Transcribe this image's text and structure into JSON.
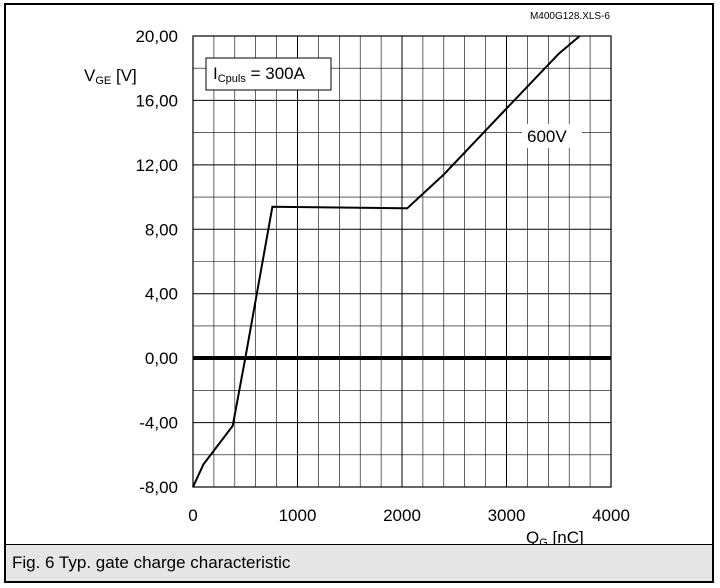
{
  "chart_data": {
    "type": "line",
    "title": "",
    "xlabel_main": "Q",
    "xlabel_sub": "G",
    "xlabel_unit": " [nC]",
    "ylabel_main": "V",
    "ylabel_sub": "GE",
    "ylabel_unit": " [V]",
    "xlim": [
      0,
      4000
    ],
    "ylim": [
      -8,
      20
    ],
    "x_ticks": [
      0,
      1000,
      2000,
      3000,
      4000
    ],
    "x_tick_labels": [
      "0",
      "1000",
      "2000",
      "3000",
      "4000"
    ],
    "y_ticks": [
      -8,
      -4,
      0,
      4,
      8,
      12,
      16,
      20
    ],
    "y_tick_labels": [
      "-8,00",
      "-4,00",
      "0,00",
      "4,00",
      "8,00",
      "12,00",
      "16,00",
      "20,00"
    ],
    "grid": true,
    "minor_grid": "x every 200 nC, y every 2 V",
    "series": [
      {
        "name": "600V",
        "x": [
          0,
          100,
          380,
          500,
          760,
          2000,
          2050,
          2400,
          3000,
          3500,
          3700
        ],
        "y": [
          -8,
          -6.6,
          -4.2,
          0,
          9.4,
          9.3,
          9.3,
          11.4,
          15.5,
          18.9,
          20.0
        ]
      }
    ],
    "annotations": {
      "condition_main": "I",
      "condition_sub": "Cpuls",
      "condition_rest": " = 300A",
      "series_label": "600V"
    },
    "colors": {
      "line": "#000000",
      "grid": "#000000"
    }
  },
  "file_id": "M400G128.XLS-6",
  "caption": "Fig. 6 Typ. gate charge characteristic"
}
